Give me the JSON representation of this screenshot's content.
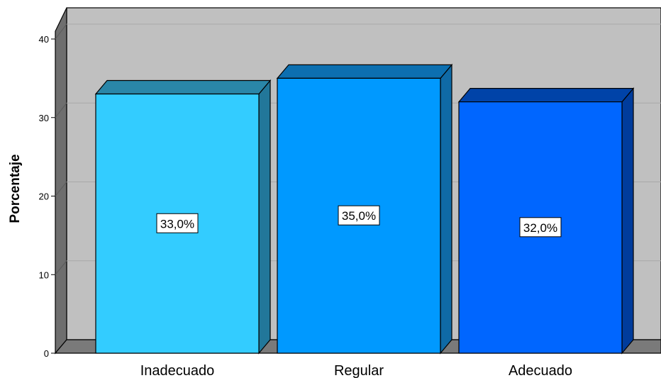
{
  "chart_data": {
    "type": "bar",
    "categories": [
      "Inadecuado",
      "Regular",
      "Adecuado"
    ],
    "values": [
      33.0,
      35.0,
      32.0
    ],
    "data_labels": [
      "33,0%",
      "35,0%",
      "32,0%"
    ],
    "colors": [
      "#33CCFF",
      "#0099FF",
      "#0066FF"
    ],
    "side_colors": [
      "#22779A",
      "#0F6AA6",
      "#003C9C"
    ],
    "top_colors": [
      "#2A86A8",
      "#0C6FB0",
      "#0043A8"
    ],
    "title": "",
    "xlabel": "",
    "ylabel": "Porcentaje",
    "ylim": [
      0,
      40
    ],
    "yticks": [
      0,
      10,
      20,
      30,
      40
    ],
    "grid": true,
    "style": "3d",
    "background_color": "#C0C0C0",
    "wall_side_color": "#6E6E6E",
    "floor_color": "#7A7A7A"
  }
}
